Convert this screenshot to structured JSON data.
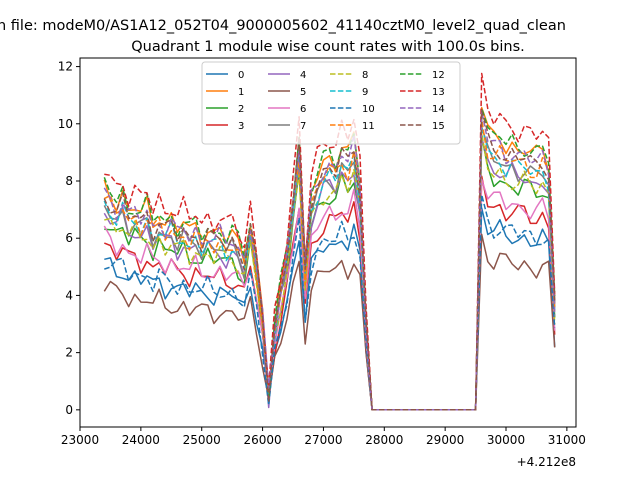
{
  "chart_data": {
    "type": "line",
    "suptitle": "n file: modeM0/AS1A12_052T04_9000005602_41140cztM0_level2_quad_clean",
    "title": "Quadrant 1 module wise count rates with 100.0s bins.",
    "xlabel": "",
    "ylabel": "",
    "x_offset_label": "+4.212e8",
    "xlim": [
      23000,
      31150
    ],
    "ylim": [
      -0.6,
      12.3
    ],
    "x_ticks": [
      23000,
      24000,
      25000,
      26000,
      27000,
      28000,
      29000,
      30000,
      31000
    ],
    "y_ticks": [
      0,
      2,
      4,
      6,
      8,
      10,
      12
    ],
    "grid": false,
    "legend_position": "top-center",
    "legend_columns": 4,
    "x_segments": [
      {
        "start": 23400,
        "end": 25600,
        "step": 100
      },
      {
        "start": 25700,
        "end": 27700,
        "step": 100
      },
      {
        "start": 29600,
        "end": 30800,
        "step": 100
      }
    ],
    "zero_gap": [
      27800,
      29500
    ],
    "shape": [
      [
        0.72,
        0.7,
        0.67,
        0.7,
        0.64,
        0.66,
        0.63,
        0.66,
        0.6,
        0.64,
        0.6,
        0.62,
        0.58,
        0.61,
        0.57,
        0.6,
        0.56,
        0.59,
        0.56,
        0.58,
        0.55,
        0.57,
        0.54
      ],
      [
        0.5,
        0.62,
        0.48,
        0.3,
        0.05,
        0.28,
        0.4,
        0.52,
        0.7,
        0.88,
        0.45,
        0.7,
        0.76,
        0.8,
        0.82,
        0.8,
        0.86,
        0.82,
        0.88,
        0.74,
        0.3
      ],
      [
        1.0,
        0.9,
        0.87,
        0.88,
        0.85,
        0.86,
        0.84,
        0.85,
        0.83,
        0.82,
        0.84,
        0.8,
        0.35
      ]
    ],
    "series": [
      {
        "name": "0",
        "color": "#1f77b4",
        "dash": "solid",
        "peak": 7.1
      },
      {
        "name": "1",
        "color": "#ff7f0e",
        "dash": "solid",
        "peak": 10.8
      },
      {
        "name": "2",
        "color": "#2ca02c",
        "dash": "solid",
        "peak": 9.2
      },
      {
        "name": "3",
        "color": "#d62728",
        "dash": "solid",
        "peak": 8.1
      },
      {
        "name": "4",
        "color": "#9467bd",
        "dash": "solid",
        "peak": 9.6
      },
      {
        "name": "5",
        "color": "#8c564b",
        "dash": "solid",
        "peak": 6.0
      },
      {
        "name": "6",
        "color": "#e377c2",
        "dash": "solid",
        "peak": 8.4
      },
      {
        "name": "7",
        "color": "#7f7f7f",
        "dash": "solid",
        "peak": 9.9
      },
      {
        "name": "8",
        "color": "#bcbd22",
        "dash": "dashed",
        "peak": 9.4
      },
      {
        "name": "9",
        "color": "#17becf",
        "dash": "dashed",
        "peak": 10.0
      },
      {
        "name": "10",
        "color": "#1f77b4",
        "dash": "dashed",
        "peak": 7.3
      },
      {
        "name": "11",
        "color": "#ff7f0e",
        "dash": "dashed",
        "peak": 10.2
      },
      {
        "name": "12",
        "color": "#2ca02c",
        "dash": "dashed",
        "peak": 10.9
      },
      {
        "name": "13",
        "color": "#d62728",
        "dash": "dashed",
        "peak": 11.6
      },
      {
        "name": "14",
        "color": "#9467bd",
        "dash": "dashed",
        "peak": 10.5
      },
      {
        "name": "15",
        "color": "#8c564b",
        "dash": "dashed",
        "peak": 10.4
      }
    ]
  }
}
